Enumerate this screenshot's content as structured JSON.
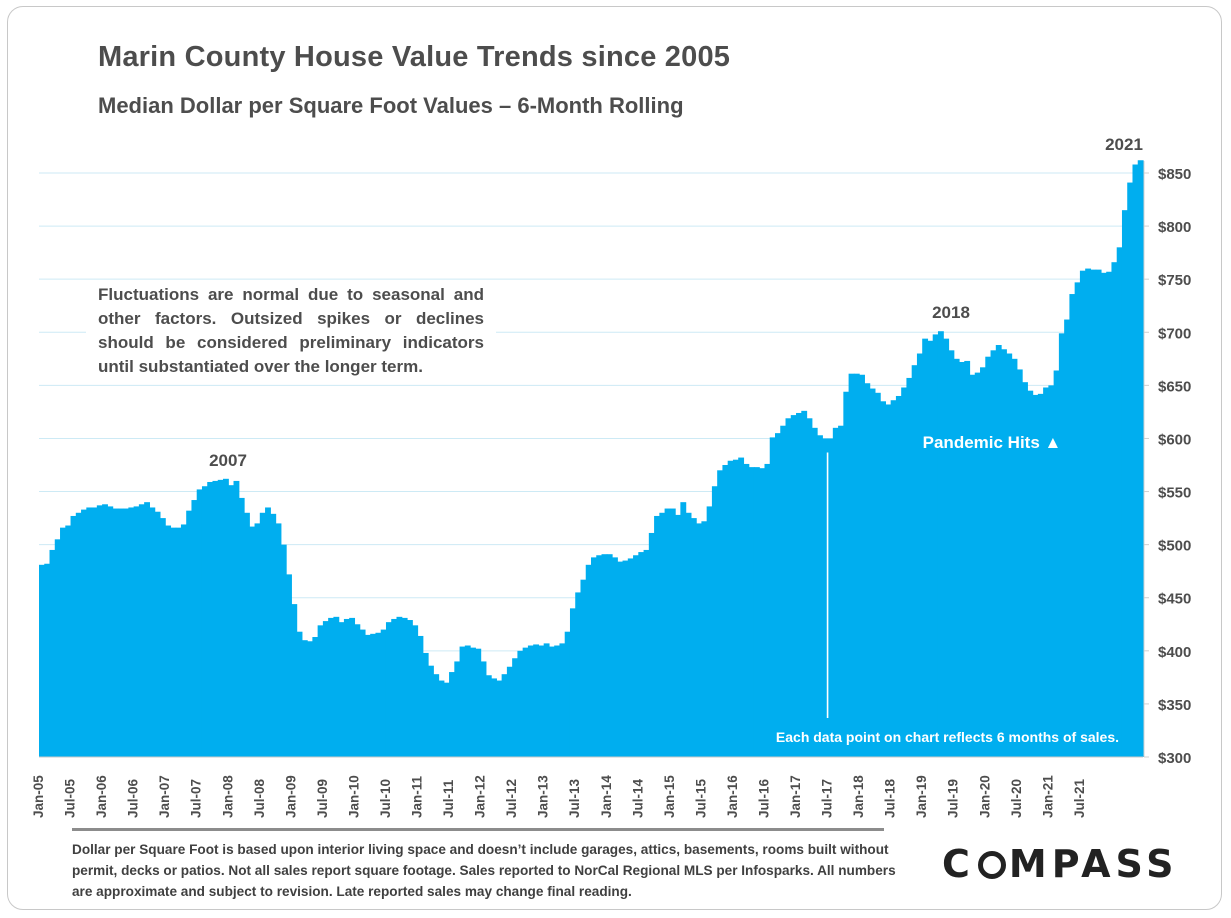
{
  "header": {
    "title": "Marin County House Value Trends since 2005",
    "subtitle": "Median Dollar per Square Foot Values – 6-Month Rolling"
  },
  "note": "Fluctuations are normal due to seasonal and other factors. Outsized spikes or declines should be considered preliminary indicators until substantiated over the longer term.",
  "footer": {
    "disclaimer": "Dollar per Square Foot is based upon interior living space and doesn’t include garages, attics, basements, rooms built without permit, decks or patios. Not all sales report square footage. Sales reported to NorCal Regional MLS per Infosparks. All numbers are approximate and subject to revision. Late reported sales may change final reading.",
    "logo": "COMPASS"
  },
  "colors": {
    "bar": "#00AEEF",
    "gridline": "#cdeaf5",
    "text": "#4d4d4d"
  },
  "chart_data": {
    "type": "area",
    "title": "Marin County House Value Trends since 2005",
    "subtitle": "Median Dollar per Square Foot Values – 6-Month Rolling",
    "xlabel": "",
    "ylabel": "",
    "ylim": [
      300,
      850
    ],
    "y_ticks": [
      300,
      350,
      400,
      450,
      500,
      550,
      600,
      650,
      700,
      750,
      800,
      850
    ],
    "y_tick_labels": [
      "$300",
      "$350",
      "$400",
      "$450",
      "$500",
      "$550",
      "$600",
      "$650",
      "$700",
      "$750",
      "$800",
      "$850"
    ],
    "y_axis_position": "right",
    "grid": true,
    "x_tick_labels": [
      "Jan-05",
      "Jul-05",
      "Jan-06",
      "Jul-06",
      "Jan-07",
      "Jul-07",
      "Jan-08",
      "Jul-08",
      "Jan-09",
      "Jul-09",
      "Jan-10",
      "Jul-10",
      "Jan-11",
      "Jul-11",
      "Jan-12",
      "Jul-12",
      "Jan-13",
      "Jul-13",
      "Jan-14",
      "Jul-14",
      "Jan-15",
      "Jul-15",
      "Jan-16",
      "Jul-16",
      "Jan-17",
      "Jul-17",
      "Jan-18",
      "Jul-18",
      "Jan-19",
      "Jul-19",
      "Jan-20",
      "Jul-20",
      "Jan-21",
      "Jul-21"
    ],
    "x_start": "Jan-05",
    "x_end": "Jul-21",
    "values": [
      481,
      482,
      495,
      505,
      516,
      518,
      527,
      530,
      533,
      535,
      535,
      537,
      538,
      536,
      534,
      534,
      534,
      535,
      536,
      538,
      540,
      535,
      531,
      525,
      518,
      516,
      516,
      519,
      532,
      542,
      552,
      555,
      559,
      560,
      561,
      562,
      556,
      560,
      544,
      530,
      517,
      520,
      530,
      535,
      529,
      520,
      500,
      472,
      444,
      418,
      410,
      409,
      413,
      424,
      428,
      431,
      432,
      427,
      430,
      431,
      425,
      420,
      415,
      416,
      417,
      420,
      427,
      430,
      432,
      431,
      429,
      424,
      414,
      398,
      386,
      378,
      372,
      370,
      380,
      390,
      404,
      405,
      403,
      402,
      390,
      377,
      374,
      372,
      378,
      385,
      393,
      400,
      403,
      405,
      406,
      405,
      407,
      404,
      405,
      407,
      418,
      440,
      455,
      467,
      481,
      488,
      490,
      491,
      491,
      488,
      484,
      485,
      487,
      490,
      493,
      495,
      511,
      527,
      530,
      534,
      534,
      528,
      540,
      530,
      525,
      520,
      522,
      536,
      555,
      570,
      575,
      579,
      580,
      582,
      576,
      573,
      573,
      572,
      576,
      601,
      605,
      612,
      619,
      622,
      624,
      626,
      619,
      610,
      603,
      600,
      600,
      610,
      612,
      644,
      661,
      661,
      660,
      652,
      647,
      643,
      635,
      632,
      636,
      640,
      648,
      657,
      669,
      680,
      694,
      692,
      698,
      701,
      694,
      683,
      675,
      672,
      673,
      660,
      662,
      667,
      677,
      683,
      688,
      684,
      680,
      675,
      665,
      653,
      645,
      641,
      642,
      648,
      650,
      664,
      699,
      712,
      736,
      747,
      758,
      760,
      759,
      759,
      756,
      757,
      766,
      780,
      815,
      841,
      858,
      862
    ],
    "annotations": [
      {
        "text": "2007"
      },
      {
        "text": "2018"
      },
      {
        "text": "2021"
      },
      {
        "text": "Pandemic Hits ▲"
      },
      {
        "text": "Each data point on chart reflects 6 months of sales."
      }
    ]
  }
}
